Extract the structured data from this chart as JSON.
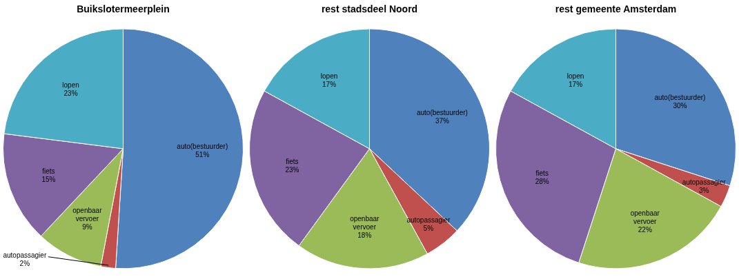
{
  "chart_data": [
    {
      "type": "pie",
      "title": "Buikslotermeerplein",
      "categories": [
        "auto(bestuurder)",
        "autopassagier",
        "openbaar vervoer",
        "fiets",
        "lopen"
      ],
      "values": [
        51,
        2,
        9,
        15,
        23
      ],
      "value_labels": [
        "51%",
        "2%",
        "9%",
        "15%",
        "23%"
      ],
      "colors": [
        "#4f81bd",
        "#c0504d",
        "#9bbb59",
        "#8064a2",
        "#4bacc6"
      ],
      "legend": false
    },
    {
      "type": "pie",
      "title": "rest stadsdeel Noord",
      "categories": [
        "auto(bestuurder)",
        "autopassagier",
        "openbaar vervoer",
        "fiets",
        "lopen"
      ],
      "values": [
        37,
        5,
        18,
        23,
        17
      ],
      "value_labels": [
        "37%",
        "5%",
        "18%",
        "23%",
        "17%"
      ],
      "colors": [
        "#4f81bd",
        "#c0504d",
        "#9bbb59",
        "#8064a2",
        "#4bacc6"
      ],
      "legend": false
    },
    {
      "type": "pie",
      "title": "rest gemeente Amsterdam",
      "categories": [
        "auto(bestuurder)",
        "autopassagier",
        "openbaar vervoer",
        "fiets",
        "lopen"
      ],
      "values": [
        30,
        3,
        22,
        28,
        17
      ],
      "value_labels": [
        "30%",
        "3%",
        "22%",
        "28%",
        "17%"
      ],
      "colors": [
        "#4f81bd",
        "#c0504d",
        "#9bbb59",
        "#8064a2",
        "#4bacc6"
      ],
      "legend": false
    }
  ]
}
